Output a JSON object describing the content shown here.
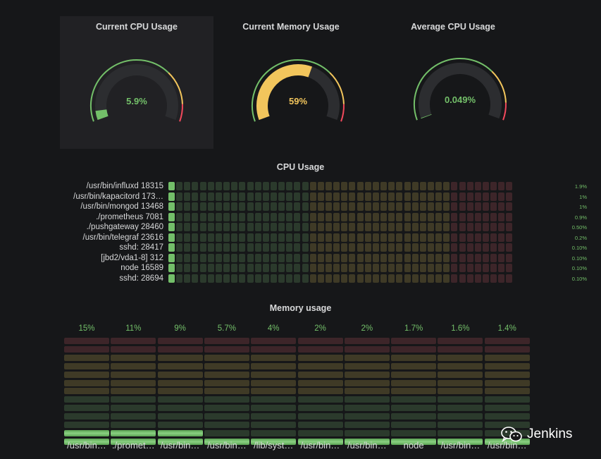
{
  "gauges": [
    {
      "title": "Current CPU Usage",
      "value_text": "5.9%",
      "percent": 5.9,
      "value_color": "#73bf69"
    },
    {
      "title": "Current Memory Usage",
      "value_text": "59%",
      "percent": 59,
      "value_color": "#f2c55c"
    },
    {
      "title": "Average CPU Usage",
      "value_text": "0.049%",
      "percent": 0.049,
      "value_color": "#73bf69"
    }
  ],
  "cpu_usage": {
    "title": "CPU Usage",
    "rows": [
      {
        "label": "/usr/bin/influxd 18315",
        "value": "1.9%"
      },
      {
        "label": "/usr/bin/kapacitord 173…",
        "value": "1%"
      },
      {
        "label": "/usr/bin/mongod 13468",
        "value": "1%"
      },
      {
        "label": "./prometheus 7081",
        "value": "0.9%"
      },
      {
        "label": "./pushgateway 28460",
        "value": "0.50%"
      },
      {
        "label": "/usr/bin/telegraf 23616",
        "value": "0.2%"
      },
      {
        "label": "sshd: 28417",
        "value": "0.10%"
      },
      {
        "label": "[jbd2/vda1-8] 312",
        "value": "0.10%"
      },
      {
        "label": "node 16589",
        "value": "0.10%"
      },
      {
        "label": "sshd: 28694",
        "value": "0.10%"
      }
    ]
  },
  "memory_usage": {
    "title": "Memory usage",
    "bars": [
      {
        "name": "/usr/bin…",
        "value": "15%",
        "lit": 2
      },
      {
        "name": "./promet…",
        "value": "11%",
        "lit": 2
      },
      {
        "name": "/usr/bin…",
        "value": "9%",
        "lit": 2
      },
      {
        "name": "/usr/bin…",
        "value": "5.7%",
        "lit": 1
      },
      {
        "name": "/lib/syst…",
        "value": "4%",
        "lit": 1
      },
      {
        "name": "/usr/bin…",
        "value": "2%",
        "lit": 1
      },
      {
        "name": "/usr/bin…",
        "value": "2%",
        "lit": 1
      },
      {
        "name": "node",
        "value": "1.7%",
        "lit": 1
      },
      {
        "name": "/usr/bin…",
        "value": "1.6%",
        "lit": 1
      },
      {
        "name": "/usr/bin…",
        "value": "1.4%",
        "lit": 1
      }
    ]
  },
  "watermark": {
    "text": "Jenkins",
    "icon": "wechat-icon"
  },
  "colors": {
    "green": "#73bf69",
    "yellow": "#f2c55c",
    "red": "#f2495c",
    "dim_green": "#2b3a2c",
    "dim_yellow": "#3f3a26",
    "dim_red": "#3d2529",
    "track": "#2c2d30"
  }
}
